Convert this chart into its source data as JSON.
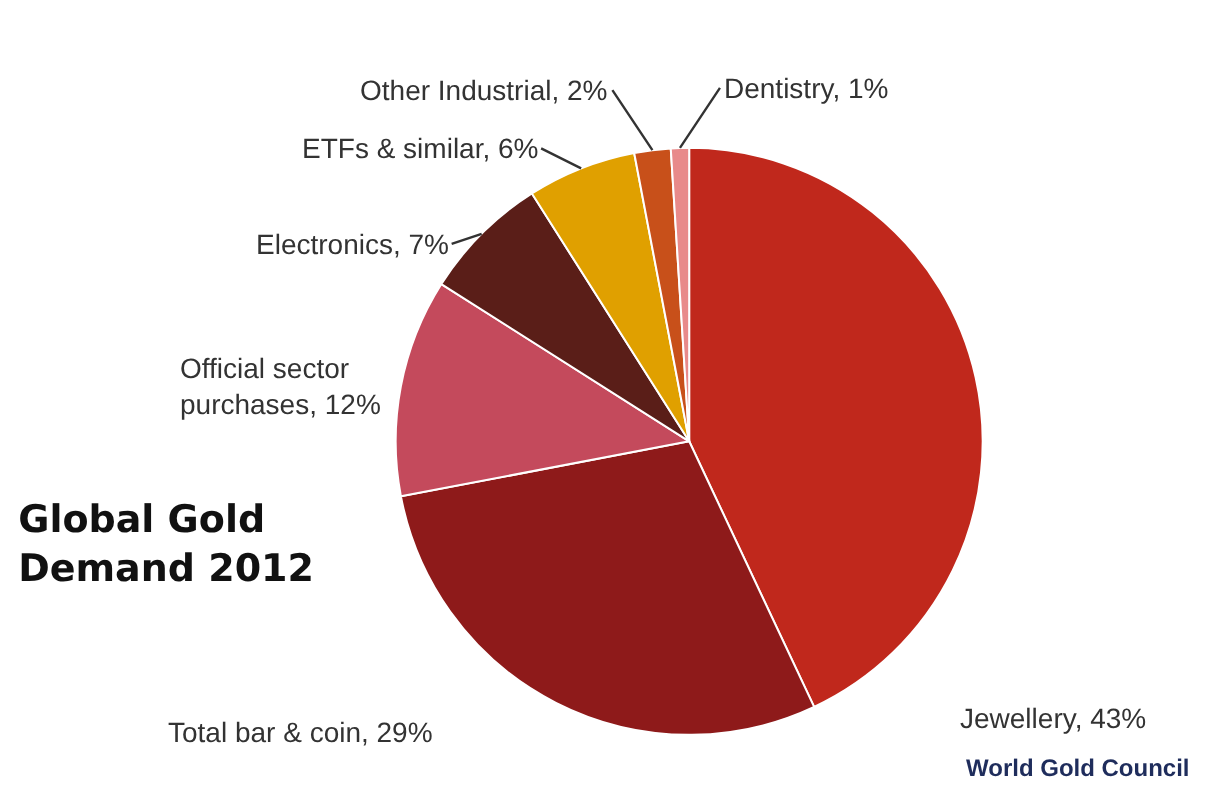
{
  "chart_data": {
    "type": "pie",
    "title": "Global Gold Demand 2012",
    "categories": [
      "Jewellery",
      "Total bar & coin",
      "Official sector purchases",
      "Electronics",
      "ETFs & similar",
      "Other Industrial",
      "Dentistry"
    ],
    "values": [
      43,
      29,
      12,
      7,
      6,
      2,
      1
    ],
    "value_labels": [
      "43%",
      "29%",
      "12%",
      "7%",
      "6%",
      "2%",
      "1%"
    ],
    "colors": [
      "#c0281c",
      "#8e1a1a",
      "#c44a5c",
      "#5a1e18",
      "#e0a000",
      "#c8501a",
      "#e88a8a"
    ],
    "annotations": [
      "World Gold Council"
    ],
    "legend": false
  }
}
